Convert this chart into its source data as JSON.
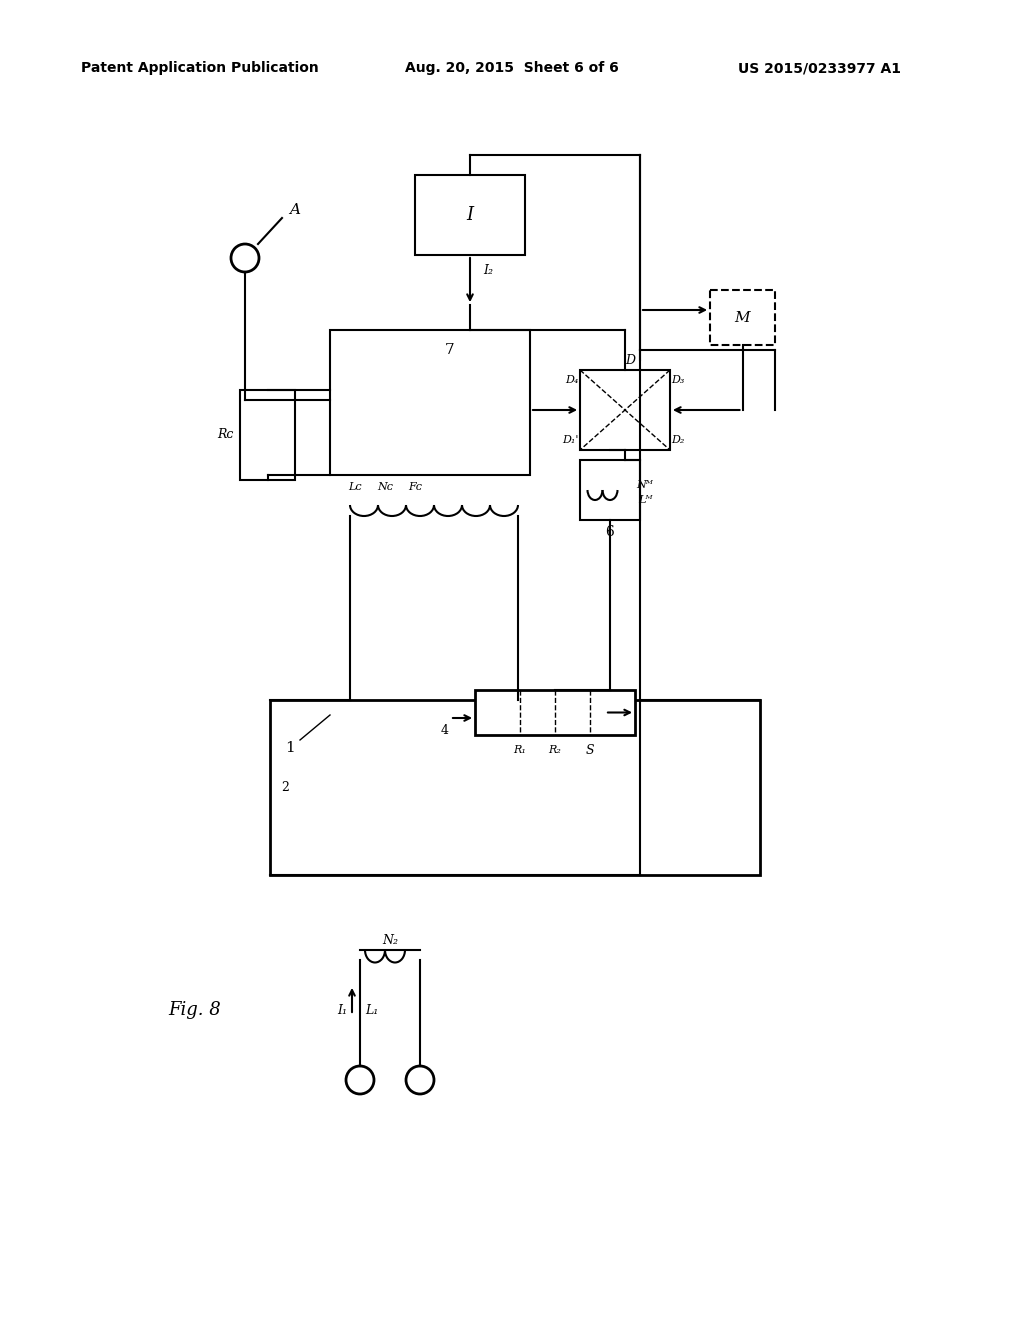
{
  "bg_color": "#ffffff",
  "header_left": "Patent Application Publication",
  "header_center": "Aug. 20, 2015  Sheet 6 of 6",
  "header_right": "US 2015/0233977 A1",
  "fig_label": "Fig. 8"
}
